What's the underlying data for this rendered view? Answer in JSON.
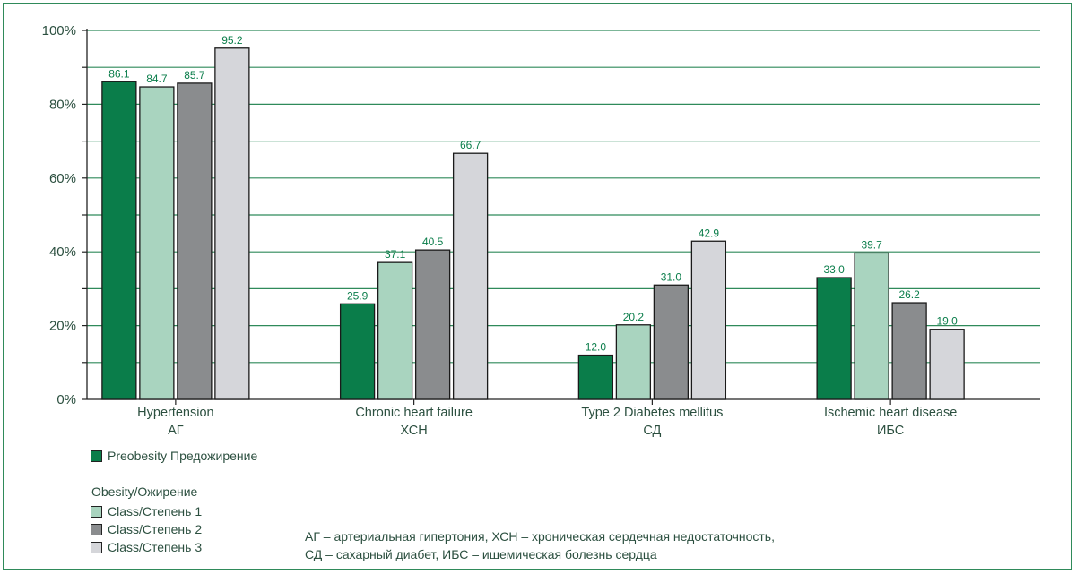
{
  "chart_data": {
    "type": "bar",
    "categories": [
      [
        "Hypertension",
        "АГ"
      ],
      [
        "Chronic heart failure",
        "ХСН"
      ],
      [
        "Type 2 Diabetes mellitus",
        "СД"
      ],
      [
        "Ischemic heart disease",
        "ИБС"
      ]
    ],
    "series": [
      {
        "name": "Preobesity Предожирение",
        "color": "#0a7d4a",
        "values": [
          86.1,
          25.9,
          12.0,
          33.0
        ],
        "labels": [
          "86.1",
          "25.9",
          "12.0",
          "33.0"
        ]
      },
      {
        "name": "Class/Степень 1",
        "color": "#a9d4bf",
        "values": [
          84.7,
          37.1,
          20.2,
          39.7
        ],
        "labels": [
          "84.7",
          "37.1",
          "20.2",
          "39.7"
        ]
      },
      {
        "name": "Class/Степень 2",
        "color": "#8a8c8e",
        "values": [
          85.7,
          40.5,
          31.0,
          26.2
        ],
        "labels": [
          "85.7",
          "40.5",
          "31.0",
          "26.2"
        ]
      },
      {
        "name": "Class/Степень 3",
        "color": "#d5d6da",
        "values": [
          95.2,
          66.7,
          42.9,
          19.0
        ],
        "labels": [
          "95.2",
          "66.7",
          "42.9",
          "19.0"
        ]
      }
    ],
    "ylim": [
      0,
      100
    ],
    "yticks": [
      "0%",
      "20%",
      "40%",
      "60%",
      "80%",
      "100%"
    ],
    "grid": true,
    "legend_placement": "bottom-left"
  },
  "legend": {
    "obesity_title": "Obesity/Ожирение"
  },
  "footnote": {
    "line1": "АГ – артериальная гипертония, ХСН – хроническая сердечная недостаточность,",
    "line2": "СД – сахарный диабет, ИБС – ишемическая болезнь сердца"
  },
  "colors": {
    "grid": "#2f8a5a",
    "text": "#2b4f3f",
    "value_label": "#0a7d4a"
  }
}
